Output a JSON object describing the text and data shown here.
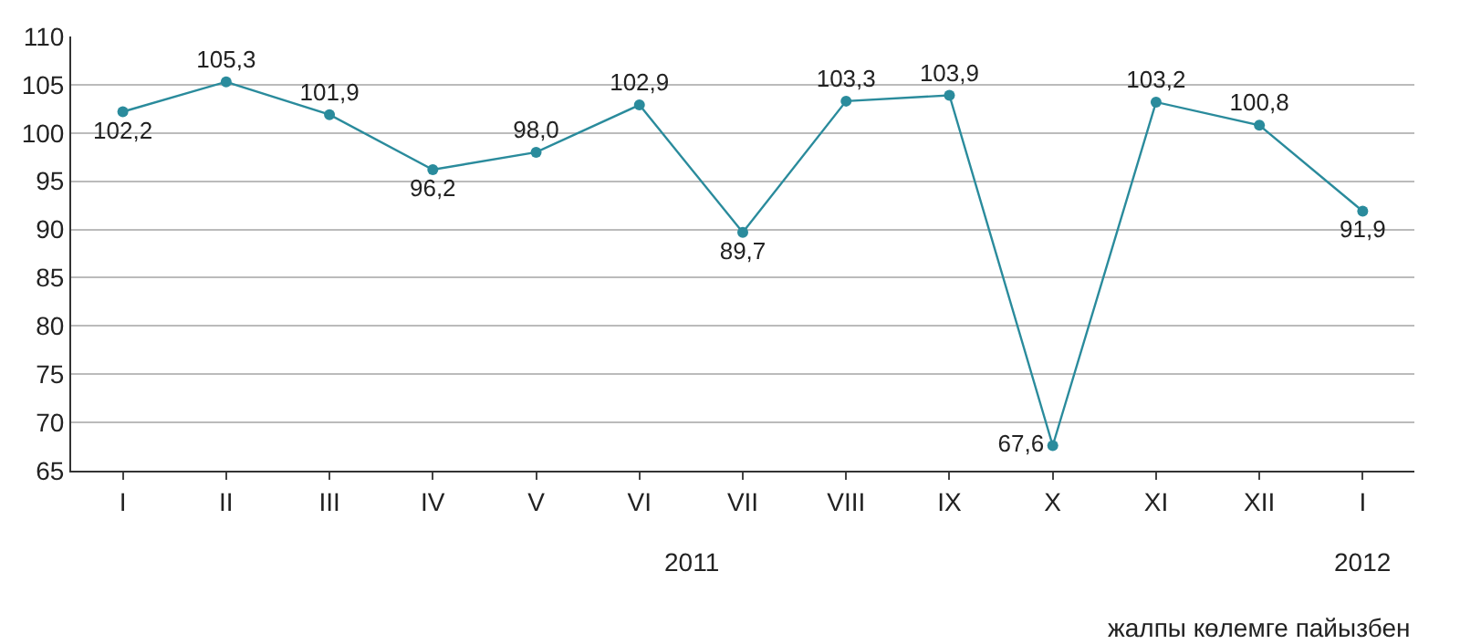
{
  "chart_data": {
    "type": "line",
    "categories": [
      "I",
      "II",
      "III",
      "IV",
      "V",
      "VI",
      "VII",
      "VIII",
      "IX",
      "X",
      "XI",
      "XII",
      "I"
    ],
    "series": [
      {
        "color": "#2a8b9c",
        "values": [
          102.2,
          105.3,
          101.9,
          96.2,
          98.0,
          102.9,
          89.7,
          103.3,
          103.9,
          67.6,
          103.2,
          100.8,
          91.9
        ],
        "value_labels": [
          "102,2",
          "105,3",
          "101,9",
          "96,2",
          "98,0",
          "102,9",
          "89,7",
          "103,3",
          "103,9",
          "67,6",
          "103,2",
          "100,8",
          "91,9"
        ]
      }
    ],
    "ylim": [
      65,
      110
    ],
    "yticks": [
      65,
      70,
      75,
      80,
      85,
      90,
      95,
      100,
      105,
      110
    ],
    "grid": "y",
    "marker": "circle",
    "line_style": "solid",
    "legend": false,
    "annotations": [
      "2011",
      "2012",
      "жалпы көлемге пайызбен"
    ]
  }
}
